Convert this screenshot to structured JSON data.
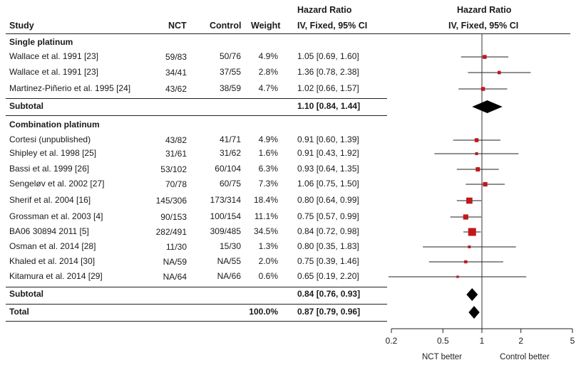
{
  "header": {
    "study": "Study",
    "nct": "NCT",
    "control": "Control",
    "weight": "Weight",
    "hr_top": "Hazard Ratio",
    "hr_sub": "IV, Fixed, 95% CI",
    "plot_top": "Hazard Ratio",
    "plot_sub": "IV, Fixed, 95% CI"
  },
  "rows": [
    {
      "kind": "group",
      "label": "Single platinum"
    },
    {
      "kind": "study",
      "study": "Wallace et al. 1991 [23]",
      "nct": "59/83",
      "control": "50/76",
      "weight": "4.9%",
      "ci": "1.05 [0.69, 1.60]"
    },
    {
      "kind": "study",
      "study": "Wallace et al. 1991 [23]",
      "nct": "34/41",
      "control": "37/55",
      "weight": "2.8%",
      "ci": "1.36 [0.78, 2.38]"
    },
    {
      "kind": "study",
      "study": "Martinez-Piñerio et al. 1995 [24]",
      "nct": "43/62",
      "control": "38/59",
      "weight": "4.7%",
      "ci": "1.02 [0.66, 1.57]"
    },
    {
      "kind": "subtotal",
      "label": "Subtotal",
      "ci": "1.10 [0.84, 1.44]"
    },
    {
      "kind": "group",
      "label": "Combination platinum"
    },
    {
      "kind": "study",
      "study": "Cortesi (unpublished)",
      "nct": "43/82",
      "control": "41/71",
      "weight": "4.9%",
      "ci": "0.91 [0.60, 1.39]"
    },
    {
      "kind": "study",
      "study": "Shipley et al. 1998 [25]",
      "nct": "31/61",
      "control": "31/62",
      "weight": "1.6%",
      "ci": "0.91 [0.43, 1.92]"
    },
    {
      "kind": "study",
      "study": "Bassi et al. 1999 [26]",
      "nct": "53/102",
      "control": "60/104",
      "weight": "6.3%",
      "ci": "0.93 [0.64, 1.35]"
    },
    {
      "kind": "study",
      "study": "Sengeløv et al. 2002 [27]",
      "nct": "70/78",
      "control": "60/75",
      "weight": "7.3%",
      "ci": "1.06 [0.75, 1.50]"
    },
    {
      "kind": "study",
      "study": "Sherif et al. 2004 [16]",
      "nct": "145/306",
      "control": "173/314",
      "weight": "18.4%",
      "ci": "0.80 [0.64, 0.99]"
    },
    {
      "kind": "study",
      "study": "Grossman et al. 2003 [4]",
      "nct": "90/153",
      "control": "100/154",
      "weight": "11.1%",
      "ci": "0.75 [0.57, 0.99]"
    },
    {
      "kind": "study",
      "study": "BA06 30894 2011 [5]",
      "nct": "282/491",
      "control": "309/485",
      "weight": "34.5%",
      "ci": "0.84 [0.72, 0.98]"
    },
    {
      "kind": "study",
      "study": "Osman et al. 2014 [28]",
      "nct": "11/30",
      "control": "15/30",
      "weight": "1.3%",
      "ci": "0.80 [0.35, 1.83]"
    },
    {
      "kind": "study",
      "study": "Khaled et al. 2014 [30]",
      "nct": "NA/59",
      "control": "NA/55",
      "weight": "2.0%",
      "ci": "0.75 [0.39, 1.46]"
    },
    {
      "kind": "study",
      "study": "Kitamura et al. 2014 [29]",
      "nct": "NA/64",
      "control": "NA/66",
      "weight": "0.6%",
      "ci": "0.65 [0.19, 2.20]"
    },
    {
      "kind": "subtotal",
      "label": "Subtotal",
      "ci": "0.84 [0.76, 0.93]"
    },
    {
      "kind": "total",
      "label": "Total",
      "weight": "100.0%",
      "ci": "0.87 [0.79, 0.96]"
    }
  ],
  "chart_data": {
    "type": "forest",
    "x_scale": "log",
    "xlim": [
      0.2,
      5
    ],
    "x_ticks": [
      "0.2",
      "0.5",
      "1",
      "2",
      "5"
    ],
    "x_tick_values": [
      0.2,
      0.5,
      1,
      2,
      5
    ],
    "reference_line": 1,
    "left_label": "NCT better",
    "right_label": "Control better",
    "marker_color": "#c0181d",
    "diamond_color": "#000000",
    "points": [
      {
        "row": 1,
        "hr": 1.05,
        "lo": 0.69,
        "hi": 1.6,
        "weight": 4.9
      },
      {
        "row": 2,
        "hr": 1.36,
        "lo": 0.78,
        "hi": 2.38,
        "weight": 2.8
      },
      {
        "row": 3,
        "hr": 1.02,
        "lo": 0.66,
        "hi": 1.57,
        "weight": 4.7
      },
      {
        "row": 6,
        "hr": 0.91,
        "lo": 0.6,
        "hi": 1.39,
        "weight": 4.9
      },
      {
        "row": 7,
        "hr": 0.91,
        "lo": 0.43,
        "hi": 1.92,
        "weight": 1.6
      },
      {
        "row": 8,
        "hr": 0.93,
        "lo": 0.64,
        "hi": 1.35,
        "weight": 6.3
      },
      {
        "row": 9,
        "hr": 1.06,
        "lo": 0.75,
        "hi": 1.5,
        "weight": 7.3
      },
      {
        "row": 10,
        "hr": 0.8,
        "lo": 0.64,
        "hi": 0.99,
        "weight": 18.4
      },
      {
        "row": 11,
        "hr": 0.75,
        "lo": 0.57,
        "hi": 0.99,
        "weight": 11.1
      },
      {
        "row": 12,
        "hr": 0.84,
        "lo": 0.72,
        "hi": 0.98,
        "weight": 34.5
      },
      {
        "row": 13,
        "hr": 0.8,
        "lo": 0.35,
        "hi": 1.83,
        "weight": 1.3
      },
      {
        "row": 14,
        "hr": 0.75,
        "lo": 0.39,
        "hi": 1.46,
        "weight": 2.0
      },
      {
        "row": 15,
        "hr": 0.65,
        "lo": 0.19,
        "hi": 2.2,
        "weight": 0.6
      }
    ],
    "diamonds": [
      {
        "row": 4,
        "hr": 1.1,
        "lo": 0.84,
        "hi": 1.44
      },
      {
        "row": 16,
        "hr": 0.84,
        "lo": 0.76,
        "hi": 0.93
      },
      {
        "row": 17,
        "hr": 0.87,
        "lo": 0.79,
        "hi": 0.96
      }
    ]
  }
}
